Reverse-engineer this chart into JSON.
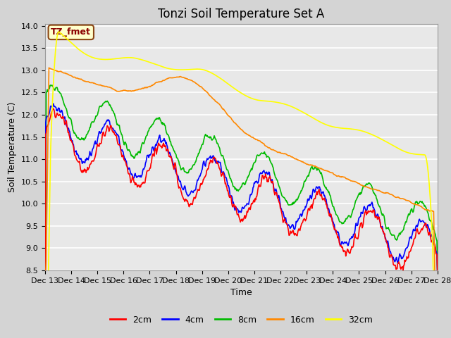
{
  "title": "Tonzi Soil Temperature Set A",
  "xlabel": "Time",
  "ylabel": "Soil Temperature (C)",
  "ylim": [
    8.5,
    14.05
  ],
  "yticks": [
    8.5,
    9.0,
    9.5,
    10.0,
    10.5,
    11.0,
    11.5,
    12.0,
    12.5,
    13.0,
    13.5,
    14.0
  ],
  "xtick_labels": [
    "Dec 13",
    "Dec 14",
    "Dec 15",
    "Dec 16",
    "Dec 17",
    "Dec 18",
    "Dec 19",
    "Dec 20",
    "Dec 21",
    "Dec 22",
    "Dec 23",
    "Dec 24",
    "Dec 25",
    "Dec 26",
    "Dec 27",
    "Dec 28"
  ],
  "fig_bg_color": "#d4d4d4",
  "plot_bg_color": "#e8e8e8",
  "legend_label": "TZ_fmet",
  "legend_bg": "#ffffcc",
  "legend_border": "#8b4513",
  "series_colors": {
    "2cm": "#ff0000",
    "4cm": "#0000ff",
    "8cm": "#00bb00",
    "16cm": "#ff8800",
    "32cm": "#ffff00"
  },
  "series_linewidth": 1.2,
  "title_fontsize": 12,
  "axis_label_fontsize": 9,
  "tick_fontsize": 8
}
